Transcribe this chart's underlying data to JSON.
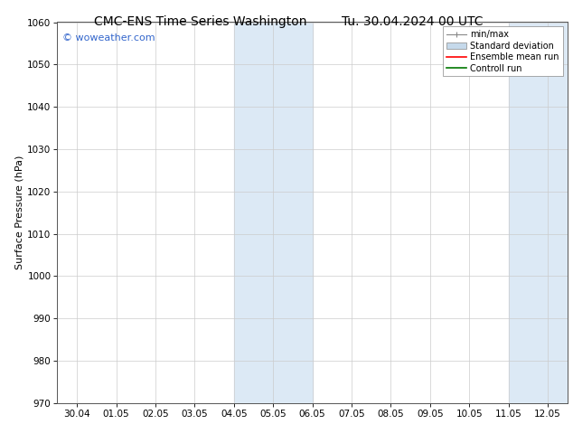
{
  "title_left": "CMC-ENS Time Series Washington",
  "title_right": "Tu. 30.04.2024 00 UTC",
  "ylabel": "Surface Pressure (hPa)",
  "ylim": [
    970,
    1060
  ],
  "yticks": [
    970,
    980,
    990,
    1000,
    1010,
    1020,
    1030,
    1040,
    1050,
    1060
  ],
  "x_ticks_labels": [
    "30.04",
    "01.05",
    "02.05",
    "03.05",
    "04.05",
    "05.05",
    "06.05",
    "07.05",
    "08.05",
    "09.05",
    "10.05",
    "11.05",
    "12.05"
  ],
  "x_ticks_days": [
    0,
    1,
    2,
    3,
    4,
    5,
    6,
    7,
    8,
    9,
    10,
    11,
    12
  ],
  "xlim": [
    -0.5,
    12.5
  ],
  "shaded_regions": [
    {
      "x_start": 4.0,
      "x_end": 6.0,
      "color": "#dce9f5"
    },
    {
      "x_start": 11.0,
      "x_end": 12.5,
      "color": "#dce9f5"
    }
  ],
  "watermark": "© woweather.com",
  "watermark_color": "#3366cc",
  "background_color": "#ffffff",
  "plot_bg_color": "#ffffff",
  "grid_color": "#cccccc",
  "spine_color": "#555555",
  "title_fontsize": 10,
  "tick_fontsize": 7.5,
  "ylabel_fontsize": 8,
  "watermark_fontsize": 8,
  "legend_fontsize": 7,
  "legend_minmax_color": "#888888",
  "legend_std_color": "#c5d9eb",
  "legend_ens_color": "#ff0000",
  "legend_ctrl_color": "#007700"
}
